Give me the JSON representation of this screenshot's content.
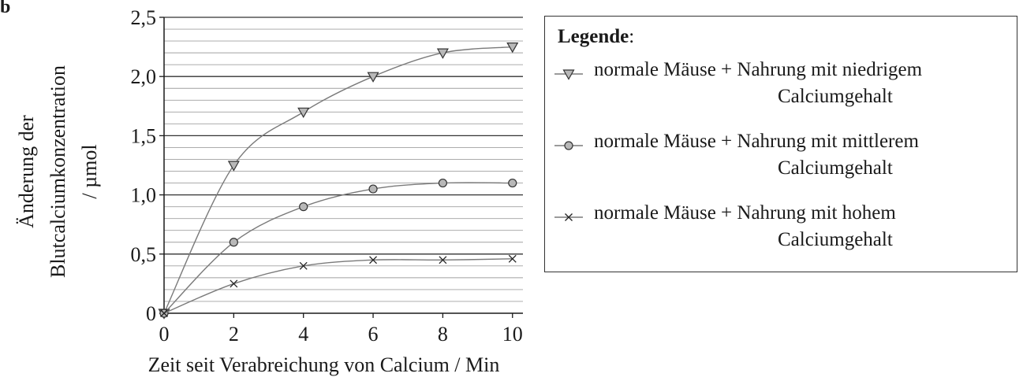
{
  "corner_label": "b",
  "legend": {
    "title": "Legende",
    "title_suffix": ":"
  },
  "chart_data": {
    "type": "line",
    "xlabel": "Zeit seit Verabreichung von Calcium / Min",
    "ylabel_lines": [
      "Änderung der",
      "Blutcalciumkonzentration",
      "/ µmol"
    ],
    "xlim": [
      0,
      10.3
    ],
    "ylim": [
      0,
      2.5
    ],
    "x_ticks": [
      0,
      2,
      4,
      6,
      8,
      10
    ],
    "x_tick_labels": [
      "0",
      "2",
      "4",
      "6",
      "8",
      "10"
    ],
    "y_ticks": [
      0,
      0.5,
      1.0,
      1.5,
      2.0,
      2.5
    ],
    "y_tick_labels": [
      "0",
      "0,5",
      "1,0",
      "1,5",
      "2,0",
      "2,5"
    ],
    "y_minor_step": 0.1,
    "grid": true,
    "legend_position": "right",
    "x": [
      0,
      2,
      4,
      6,
      8,
      10
    ],
    "series": [
      {
        "name": "normale Mäuse + Nahrung mit niedrigem Calciumgehalt",
        "name_line1": "normale Mäuse + Nahrung mit niedrigem",
        "name_line2": "Calciumgehalt",
        "marker": "triangle-down",
        "values": [
          0,
          1.25,
          1.7,
          2.0,
          2.2,
          2.25
        ]
      },
      {
        "name": "normale Mäuse + Nahrung mit mittlerem Calciumgehalt",
        "name_line1": "normale Mäuse + Nahrung mit mittlerem",
        "name_line2": "Calciumgehalt",
        "marker": "circle",
        "values": [
          0,
          0.6,
          0.9,
          1.05,
          1.1,
          1.1
        ]
      },
      {
        "name": "normale Mäuse + Nahrung mit hohem Calciumgehalt",
        "name_line1": "normale Mäuse + Nahrung mit hohem",
        "name_line2": "Calciumgehalt",
        "marker": "cross",
        "values": [
          0,
          0.25,
          0.4,
          0.45,
          0.45,
          0.46
        ]
      }
    ],
    "colors": {
      "line": "#7a7a7a",
      "marker_fill": "#b8b8b8",
      "major_grid": "#333333",
      "minor_grid": "#a0a0a0",
      "axis": "#1a1a1a"
    }
  }
}
